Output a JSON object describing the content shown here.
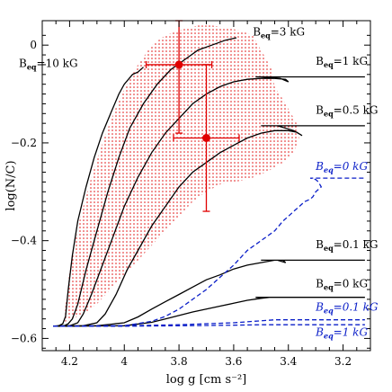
{
  "chart_data": {
    "type": "line",
    "xlabel": "log g [cm s⁻²]",
    "ylabel": "log(N/C)",
    "xlim": [
      4.3,
      3.1
    ],
    "ylim": [
      -0.625,
      0.05
    ],
    "x_reversed": true,
    "x_ticks": [
      4.2,
      4.0,
      3.8,
      3.6,
      3.4,
      3.2
    ],
    "x_tick_labels": [
      "4.2",
      "4",
      "3.8",
      "3.6",
      "3.4",
      "3.2"
    ],
    "y_ticks": [
      0,
      -0.2,
      -0.4,
      -0.6
    ],
    "y_tick_labels": [
      "0",
      "−0.2",
      "−0.4",
      "−0.6"
    ],
    "colors": {
      "solid": "#000000",
      "dashed": "#0a1ec8",
      "observed": "#e00000",
      "shade": "#e00000"
    },
    "series": [
      {
        "id": "b10",
        "style": "solid",
        "label_main": "B",
        "label_sub": "eq",
        "label_rest": "=10 kG",
        "label_pos": "left",
        "label_x": 4.17,
        "label_y": -0.045,
        "x": [
          4.26,
          4.24,
          4.225,
          4.215,
          4.205,
          4.19,
          4.17,
          4.14,
          4.11,
          4.08,
          4.05,
          4.02,
          4.0,
          3.97,
          3.95,
          3.93
        ],
        "y": [
          -0.575,
          -0.574,
          -0.57,
          -0.555,
          -0.5,
          -0.43,
          -0.36,
          -0.29,
          -0.23,
          -0.18,
          -0.14,
          -0.1,
          -0.08,
          -0.06,
          -0.055,
          -0.045
        ]
      },
      {
        "id": "b3",
        "style": "solid",
        "label_main": "B",
        "label_sub": "eq",
        "label_rest": "=3 kG",
        "label_pos": "right",
        "label_x": 3.53,
        "label_y": 0.02,
        "x": [
          4.26,
          4.22,
          4.205,
          4.19,
          4.17,
          4.14,
          4.1,
          4.06,
          4.02,
          3.98,
          3.93,
          3.88,
          3.83,
          3.78,
          3.73,
          3.68,
          3.63,
          3.59
        ],
        "y": [
          -0.575,
          -0.574,
          -0.57,
          -0.56,
          -0.53,
          -0.46,
          -0.38,
          -0.3,
          -0.23,
          -0.17,
          -0.12,
          -0.08,
          -0.05,
          -0.03,
          -0.01,
          0.0,
          0.01,
          0.015
        ]
      },
      {
        "id": "b1",
        "style": "solid",
        "label_main": "B",
        "label_sub": "eq",
        "label_rest": "=1 kG",
        "label_pos": "right",
        "label_x": 3.3,
        "label_y": -0.04,
        "x": [
          4.26,
          4.2,
          4.17,
          4.15,
          4.12,
          4.08,
          4.04,
          4.0,
          3.95,
          3.9,
          3.85,
          3.8,
          3.75,
          3.7,
          3.65,
          3.6,
          3.55,
          3.5,
          3.45,
          3.41,
          3.4,
          3.43,
          3.5,
          3.52,
          3.3,
          3.12
        ],
        "y": [
          -0.575,
          -0.574,
          -0.568,
          -0.55,
          -0.51,
          -0.45,
          -0.39,
          -0.33,
          -0.27,
          -0.22,
          -0.18,
          -0.15,
          -0.12,
          -0.1,
          -0.085,
          -0.075,
          -0.07,
          -0.068,
          -0.068,
          -0.07,
          -0.075,
          -0.068,
          -0.065,
          -0.065,
          -0.065,
          -0.065
        ]
      },
      {
        "id": "b05",
        "style": "solid",
        "label_main": "B",
        "label_sub": "eq",
        "label_rest": "=0.5 kG",
        "label_pos": "right",
        "label_x": 3.3,
        "label_y": -0.14,
        "x": [
          4.26,
          4.15,
          4.1,
          4.07,
          4.03,
          3.99,
          3.95,
          3.9,
          3.85,
          3.8,
          3.75,
          3.7,
          3.65,
          3.6,
          3.55,
          3.5,
          3.45,
          3.4,
          3.37,
          3.35,
          3.38,
          3.44,
          3.5,
          3.12
        ],
        "y": [
          -0.575,
          -0.574,
          -0.568,
          -0.55,
          -0.51,
          -0.46,
          -0.42,
          -0.37,
          -0.33,
          -0.29,
          -0.26,
          -0.24,
          -0.22,
          -0.205,
          -0.19,
          -0.18,
          -0.175,
          -0.175,
          -0.178,
          -0.185,
          -0.175,
          -0.165,
          -0.165,
          -0.165
        ]
      },
      {
        "id": "b01",
        "style": "solid",
        "label_main": "B",
        "label_sub": "eq",
        "label_rest": "=0.1 kG",
        "label_pos": "right",
        "label_x": 3.3,
        "label_y": -0.415,
        "x": [
          4.26,
          4.1,
          4.0,
          3.95,
          3.9,
          3.85,
          3.8,
          3.75,
          3.7,
          3.65,
          3.6,
          3.55,
          3.5,
          3.45,
          3.42,
          3.41,
          3.44,
          3.5,
          3.12
        ],
        "y": [
          -0.575,
          -0.574,
          -0.568,
          -0.556,
          -0.54,
          -0.525,
          -0.51,
          -0.495,
          -0.48,
          -0.47,
          -0.458,
          -0.45,
          -0.445,
          -0.44,
          -0.44,
          -0.445,
          -0.44,
          -0.44,
          -0.44
        ]
      },
      {
        "id": "b0",
        "style": "solid",
        "label_main": "B",
        "label_sub": "eq",
        "label_rest": "=0 kG",
        "label_pos": "right",
        "label_x": 3.3,
        "label_y": -0.495,
        "x": [
          4.26,
          4.0,
          3.9,
          3.85,
          3.8,
          3.75,
          3.7,
          3.65,
          3.6,
          3.55,
          3.5,
          3.47,
          3.46,
          3.48,
          3.52,
          3.12
        ],
        "y": [
          -0.575,
          -0.574,
          -0.567,
          -0.56,
          -0.553,
          -0.546,
          -0.54,
          -0.534,
          -0.528,
          -0.522,
          -0.518,
          -0.516,
          -0.516,
          -0.516,
          -0.516,
          -0.516
        ]
      },
      {
        "id": "d0",
        "style": "dashed",
        "label_main": "B",
        "label_sub": "eq",
        "label_rest": "=0 kG",
        "label_pos": "right",
        "label_x": 3.3,
        "label_y": -0.255,
        "x": [
          4.26,
          4.0,
          3.9,
          3.85,
          3.8,
          3.75,
          3.7,
          3.65,
          3.6,
          3.55,
          3.5,
          3.45,
          3.42,
          3.4,
          3.38,
          3.36,
          3.34,
          3.32,
          3.31,
          3.3,
          3.28,
          3.29,
          3.3,
          3.32,
          3.28,
          3.12
        ],
        "y": [
          -0.575,
          -0.574,
          -0.565,
          -0.555,
          -0.54,
          -0.52,
          -0.5,
          -0.475,
          -0.45,
          -0.42,
          -0.4,
          -0.38,
          -0.36,
          -0.35,
          -0.34,
          -0.33,
          -0.32,
          -0.315,
          -0.31,
          -0.3,
          -0.29,
          -0.28,
          -0.275,
          -0.272,
          -0.272,
          -0.272
        ]
      },
      {
        "id": "d01",
        "style": "dashed",
        "label_main": "B",
        "label_sub": "eq",
        "label_rest": "=0.1 kG",
        "label_pos": "right",
        "label_x": 3.3,
        "label_y": -0.543,
        "x": [
          4.26,
          4.0,
          3.8,
          3.6,
          3.5,
          3.45,
          3.4,
          3.3,
          3.12
        ],
        "y": [
          -0.575,
          -0.574,
          -0.572,
          -0.568,
          -0.564,
          -0.562,
          -0.562,
          -0.562,
          -0.562
        ]
      },
      {
        "id": "d1",
        "style": "dashed",
        "label_main": "B",
        "label_sub": "eq",
        "label_rest": "=1 kG",
        "label_pos": "right",
        "label_x": 3.3,
        "label_y": -0.595,
        "x": [
          4.26,
          4.0,
          3.8,
          3.6,
          3.5,
          3.4,
          3.3,
          3.12
        ],
        "y": [
          -0.575,
          -0.575,
          -0.574,
          -0.573,
          -0.572,
          -0.572,
          -0.572,
          -0.572
        ]
      }
    ],
    "shaded_region": {
      "fill": "dotted red",
      "x": [
        4.22,
        4.21,
        4.19,
        4.16,
        4.12,
        4.08,
        4.04,
        4.0,
        3.95,
        3.9,
        3.85,
        3.8,
        3.73,
        3.68,
        3.62,
        3.58,
        3.53,
        3.5,
        3.46,
        3.45,
        3.41,
        3.39,
        3.37,
        3.36,
        3.38,
        3.42,
        3.48,
        3.55,
        3.6,
        3.65,
        3.7,
        3.75,
        3.8,
        3.85,
        3.9,
        3.95,
        4.0,
        4.05,
        4.1,
        4.15,
        4.19,
        4.21,
        4.22
      ],
      "y": [
        -0.565,
        -0.5,
        -0.43,
        -0.35,
        -0.27,
        -0.2,
        -0.14,
        -0.09,
        -0.04,
        0.0,
        0.02,
        0.03,
        0.04,
        0.04,
        0.035,
        0.03,
        0.02,
        -0.01,
        -0.05,
        -0.085,
        -0.12,
        -0.14,
        -0.16,
        -0.19,
        -0.22,
        -0.24,
        -0.26,
        -0.275,
        -0.28,
        -0.285,
        -0.3,
        -0.32,
        -0.35,
        -0.38,
        -0.41,
        -0.44,
        -0.47,
        -0.5,
        -0.53,
        -0.55,
        -0.56,
        -0.565,
        -0.565
      ]
    },
    "observed_points": [
      {
        "x": 3.8,
        "y": -0.04,
        "xerr": 0.12,
        "yerr_low": 0.14,
        "yerr_high": 0.09
      },
      {
        "x": 3.7,
        "y": -0.19,
        "xerr": 0.12,
        "yerr_low": 0.15,
        "yerr_high": 0.15
      }
    ]
  }
}
